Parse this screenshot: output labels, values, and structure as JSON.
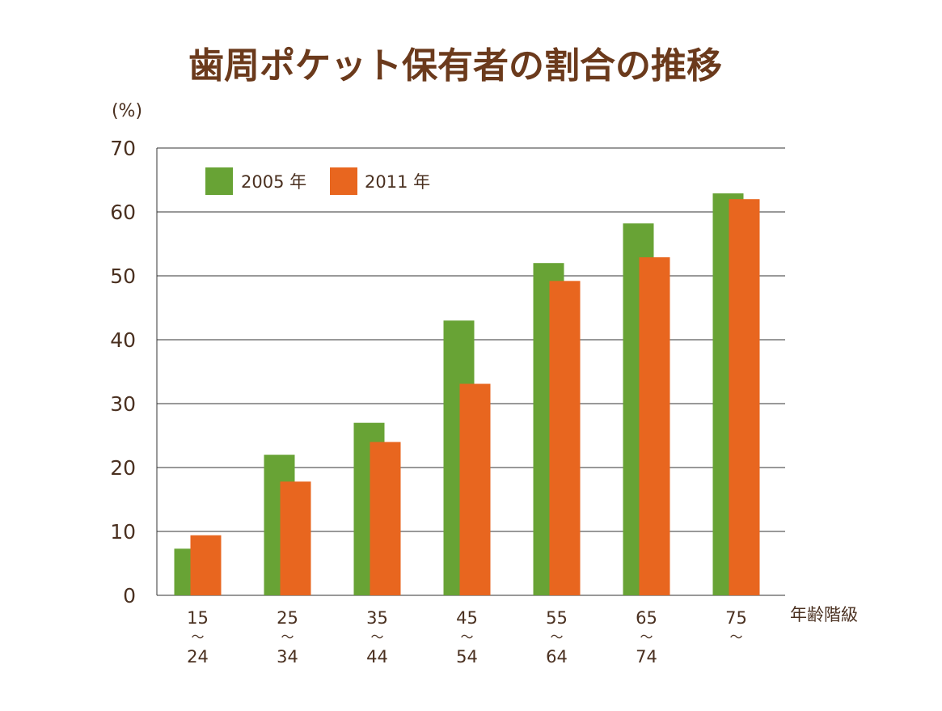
{
  "chart_data": {
    "type": "bar",
    "title": "歯周ポケット保有者の割合の推移",
    "ylabel": "(%)",
    "xlabel": "年齢階級",
    "ylim": [
      0,
      70
    ],
    "yticks": [
      "0",
      "10",
      "20",
      "30",
      "40",
      "50",
      "60",
      "70"
    ],
    "grid": true,
    "legend_position": "top-left",
    "categories": [
      {
        "top": "15",
        "sep": "～",
        "bottom": "24"
      },
      {
        "top": "25",
        "sep": "～",
        "bottom": "34"
      },
      {
        "top": "35",
        "sep": "～",
        "bottom": "44"
      },
      {
        "top": "45",
        "sep": "～",
        "bottom": "54"
      },
      {
        "top": "55",
        "sep": "～",
        "bottom": "64"
      },
      {
        "top": "65",
        "sep": "～",
        "bottom": "74"
      },
      {
        "top": "75",
        "sep": "～",
        "bottom": ""
      }
    ],
    "series": [
      {
        "name": "2005 年",
        "color": "#68a335",
        "values": [
          7.3,
          22,
          27,
          43,
          52,
          58.2,
          62.9
        ]
      },
      {
        "name": "2011 年",
        "color": "#e8661f",
        "values": [
          9.4,
          17.8,
          24,
          33.1,
          49.2,
          52.9,
          62
        ]
      }
    ]
  }
}
